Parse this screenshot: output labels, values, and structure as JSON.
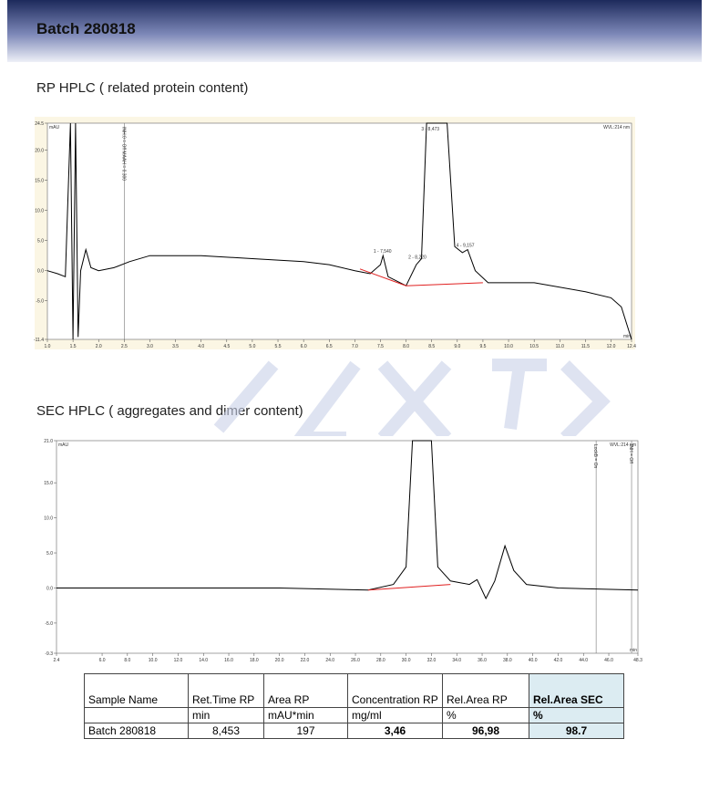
{
  "header": {
    "title": "Batch 280818"
  },
  "sections": [
    {
      "title": "RP HPLC ( related protein content)",
      "chart": {
        "type": "line",
        "y_unit": "mAU",
        "x_unit": "min",
        "channel": "WVL:214 nm",
        "note": "INH:0 = Off MAAH = 0.300",
        "note_x": 2.5,
        "xlim": [
          1.0,
          12.4
        ],
        "ylim": [
          -11.4,
          24.5
        ],
        "xticks": [
          {
            "value": 1.0,
            "label": "1.0"
          },
          1.5,
          {
            "value": 2.0,
            "label": "2.0"
          },
          2.5,
          {
            "value": 3.0,
            "label": "3.0"
          },
          3.5,
          {
            "value": 4.0,
            "label": "4.0"
          },
          4.5,
          {
            "value": 5.0,
            "label": "5.0"
          },
          5.5,
          {
            "value": 6.0,
            "label": "6.0"
          },
          6.5,
          {
            "value": 7.0,
            "label": "7.0"
          },
          7.5,
          {
            "value": 8.0,
            "label": "8.0"
          },
          8.5,
          {
            "value": 9.0,
            "label": "9.0"
          },
          9.5,
          {
            "value": 10.0,
            "label": "10.0"
          },
          10.5,
          {
            "value": 11.0,
            "label": "11.0"
          },
          11.5,
          {
            "value": 12.0,
            "label": "12.0"
          },
          12.4
        ],
        "yticks": [
          -11.4,
          {
            "value": -5.0,
            "label": "-5.0"
          },
          {
            "value": 0.0,
            "label": "0.0"
          },
          {
            "value": 5.0,
            "label": "5.0"
          },
          {
            "value": 10.0,
            "label": "10.0"
          },
          {
            "value": 15.0,
            "label": "15.0"
          },
          {
            "value": 20.0,
            "label": "20.0"
          },
          24.5
        ],
        "series": [
          {
            "name": "trace",
            "color": "#000000",
            "x": [
              1.0,
              1.2,
              1.35,
              1.45,
              1.5,
              1.55,
              1.6,
              1.65,
              1.75,
              1.85,
              2.0,
              2.3,
              2.6,
              3.0,
              4.0,
              5.0,
              6.0,
              6.5,
              7.0,
              7.3,
              7.5,
              7.55,
              7.65,
              8.0,
              8.2,
              8.3,
              8.4,
              8.8,
              8.95,
              9.1,
              9.2,
              9.35,
              9.6,
              10.5,
              11.5,
              12.0,
              12.2,
              12.4
            ],
            "values": [
              0.0,
              -0.5,
              -1.0,
              24.5,
              -11.4,
              24.5,
              -11.0,
              0.0,
              3.5,
              0.5,
              0.0,
              0.5,
              1.5,
              2.5,
              2.5,
              2.0,
              1.5,
              1.0,
              0.0,
              -0.5,
              1.0,
              2.5,
              -1.0,
              -2.5,
              1.0,
              2.0,
              24.5,
              24.5,
              4.0,
              3.0,
              3.5,
              0.0,
              -2.0,
              -2.0,
              -3.5,
              -4.5,
              -6.0,
              -11.4
            ]
          },
          {
            "name": "baseline",
            "color": "#e02020",
            "x": [
              7.1,
              8.0,
              9.5
            ],
            "values": [
              0.3,
              -2.5,
              -2.0
            ]
          }
        ],
        "peaks": [
          {
            "label": "1 - 7,540",
            "x": 7.54,
            "y": 3.0
          },
          {
            "label": "2 - 8,220",
            "x": 8.22,
            "y": 2.0
          },
          {
            "label": "3 - 8,473",
            "x": 8.473,
            "y": 23.3
          },
          {
            "label": "4 - 9,157",
            "x": 9.157,
            "y": 4.0
          }
        ]
      }
    },
    {
      "title": "SEC HPLC ( aggregates and dimer content)",
      "chart": {
        "type": "line",
        "y_unit": "mAU",
        "x_unit": "min",
        "channel": "WVL:214 nm",
        "notes": [
          {
            "text": "LockB = On",
            "x": 45.0
          },
          {
            "text": "INH = Off",
            "x": 47.8
          }
        ],
        "xlim": [
          2.4,
          48.3
        ],
        "ylim": [
          -9.3,
          21.0
        ],
        "xticks": [
          2.4,
          {
            "value": 6.0,
            "label": "6.0"
          },
          {
            "value": 8.0,
            "label": "8.0"
          },
          {
            "value": 10.0,
            "label": "10.0"
          },
          {
            "value": 12.0,
            "label": "12.0"
          },
          {
            "value": 14.0,
            "label": "14.0"
          },
          {
            "value": 16.0,
            "label": "16.0"
          },
          {
            "value": 18.0,
            "label": "18.0"
          },
          {
            "value": 20.0,
            "label": "20.0"
          },
          {
            "value": 22.0,
            "label": "22.0"
          },
          {
            "value": 24.0,
            "label": "24.0"
          },
          {
            "value": 26.0,
            "label": "26.0"
          },
          {
            "value": 28.0,
            "label": "28.0"
          },
          {
            "value": 30.0,
            "label": "30.0"
          },
          {
            "value": 32.0,
            "label": "32.0"
          },
          {
            "value": 34.0,
            "label": "34.0"
          },
          {
            "value": 36.0,
            "label": "36.0"
          },
          {
            "value": 38.0,
            "label": "38.0"
          },
          {
            "value": 40.0,
            "label": "40.0"
          },
          {
            "value": 42.0,
            "label": "42.0"
          },
          {
            "value": 44.0,
            "label": "44.0"
          },
          {
            "value": 46.0,
            "label": "46.0"
          },
          48.3
        ],
        "yticks": [
          -9.3,
          {
            "value": -5.0,
            "label": "-5.0"
          },
          {
            "value": 0.0,
            "label": "0.0"
          },
          {
            "value": 5.0,
            "label": "5.0"
          },
          {
            "value": 10.0,
            "label": "10.0"
          },
          {
            "value": 15.0,
            "label": "15.0"
          },
          {
            "value": 21.0,
            "label": "21.0"
          }
        ],
        "series": [
          {
            "name": "trace",
            "color": "#000000",
            "x": [
              2.4,
              20.0,
              27.0,
              29.0,
              30.0,
              30.5,
              32.0,
              32.5,
              33.5,
              35.0,
              35.6,
              36.3,
              37.0,
              37.8,
              38.5,
              39.5,
              42.0,
              48.3
            ],
            "values": [
              0.0,
              0.0,
              -0.3,
              0.5,
              3.0,
              21.0,
              21.0,
              3.0,
              1.0,
              0.5,
              1.2,
              -1.5,
              1.0,
              6.0,
              2.5,
              0.5,
              0.0,
              -0.3
            ]
          },
          {
            "name": "baseline",
            "color": "#e02020",
            "x": [
              27.0,
              33.5
            ],
            "values": [
              -0.3,
              0.5
            ]
          }
        ]
      }
    }
  ],
  "table": {
    "header": [
      "Sample Name",
      "Ret.Time RP",
      "Area RP",
      "Concentration RP",
      "Rel.Area RP",
      "Rel.Area SEC"
    ],
    "units": [
      null,
      "min",
      "mAU*min",
      "mg/ml",
      "%",
      "%"
    ],
    "rows": [
      [
        "Batch 280818",
        "8,453",
        "197",
        "3,46",
        "96,98",
        "98.7"
      ]
    ]
  }
}
